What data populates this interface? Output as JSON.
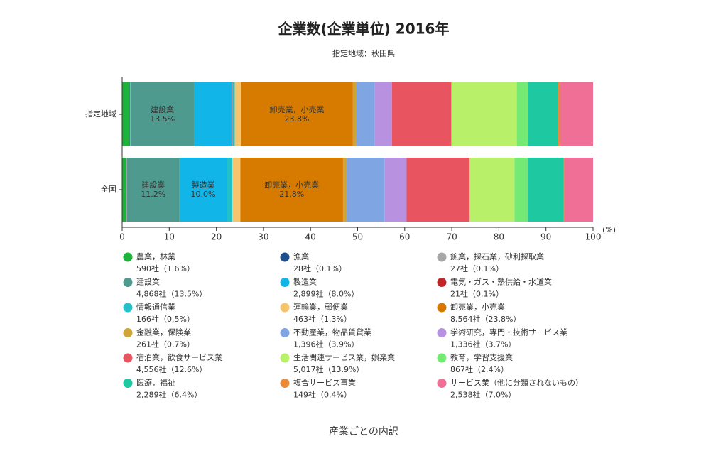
{
  "chart_data": {
    "type": "stacked-bar-horizontal",
    "title": "企業数(企業単位) 2016年",
    "subtitle": "指定地域：秋田県",
    "caption": "産業ごとの内訳",
    "x_label": "(%)",
    "categories": [
      "指定地域",
      "全国"
    ],
    "xlim": [
      0,
      100
    ],
    "xticks": [
      0,
      10,
      20,
      30,
      40,
      50,
      60,
      70,
      80,
      90,
      100
    ],
    "series": [
      {
        "name": "農業，林業",
        "color": "#1db33a",
        "values": [
          1.6,
          0.8
        ],
        "legend_label": "590社（1.6%）"
      },
      {
        "name": "漁業",
        "color": "#1f4e8c",
        "values": [
          0.1,
          0.1
        ],
        "legend_label": "28社（0.1%）"
      },
      {
        "name": "鉱業，採石業，砂利採取業",
        "color": "#a6a6a6",
        "values": [
          0.1,
          0.1
        ],
        "legend_label": "27社（0.1%）"
      },
      {
        "name": "建設業",
        "color": "#4e9a8e",
        "values": [
          13.5,
          11.2
        ],
        "value_labels": [
          "13.5%",
          "11.2%"
        ],
        "legend_label": "4,868社（13.5%）"
      },
      {
        "name": "製造業",
        "color": "#12b5e8",
        "values": [
          8.0,
          10.0
        ],
        "value_labels": [
          null,
          "10.0%"
        ],
        "legend_label": "2,899社（8.0%）"
      },
      {
        "name": "電気・ガス・熱供給・水道業",
        "color": "#c0282a",
        "values": [
          0.1,
          0.1
        ],
        "legend_label": "21社（0.1%）"
      },
      {
        "name": "情報通信業",
        "color": "#22c1c9",
        "values": [
          0.5,
          1.1
        ],
        "legend_label": "166社（0.5%）"
      },
      {
        "name": "運輸業，郵便業",
        "color": "#f5c46c",
        "values": [
          1.3,
          1.7
        ],
        "legend_label": "463社（1.3%）"
      },
      {
        "name": "卸売業，小売業",
        "color": "#d67b00",
        "values": [
          23.8,
          21.8
        ],
        "value_labels": [
          "23.8%",
          "21.8%"
        ],
        "legend_label": "8,564社（23.8%）"
      },
      {
        "name": "金融業，保険業",
        "color": "#cfa53a",
        "values": [
          0.7,
          0.8
        ],
        "legend_label": "261社（0.7%）"
      },
      {
        "name": "不動産業，物品賃貸業",
        "color": "#7fa6e3",
        "values": [
          3.9,
          8.0
        ],
        "legend_label": "1,396社（3.9%）"
      },
      {
        "name": "学術研究，専門・技術サービス業",
        "color": "#b892e0",
        "values": [
          3.7,
          4.7
        ],
        "legend_label": "1,336社（3.7%）"
      },
      {
        "name": "宿泊業，飲食サービス業",
        "color": "#e8545f",
        "values": [
          12.6,
          13.4
        ],
        "legend_label": "4,556社（12.6%）"
      },
      {
        "name": "生活関連サービス業，娯楽業",
        "color": "#b8f06a",
        "values": [
          13.9,
          9.5
        ],
        "legend_label": "5,017社（13.9%）"
      },
      {
        "name": "教育，学習支援業",
        "color": "#74ea74",
        "values": [
          2.4,
          2.8
        ],
        "legend_label": "867社（2.4%）"
      },
      {
        "name": "医療，福祉",
        "color": "#1ec8a0",
        "values": [
          6.4,
          7.7
        ],
        "legend_label": "2,289社（6.4%）"
      },
      {
        "name": "複合サービス事業",
        "color": "#ea8a3a",
        "values": [
          0.4,
          0.1
        ],
        "legend_label": "149社（0.4%）"
      },
      {
        "name": "サービス業（他に分類されないもの）",
        "color": "#f06f97",
        "values": [
          7.0,
          6.1
        ],
        "legend_label": "2,538社（7.0%）"
      }
    ]
  }
}
